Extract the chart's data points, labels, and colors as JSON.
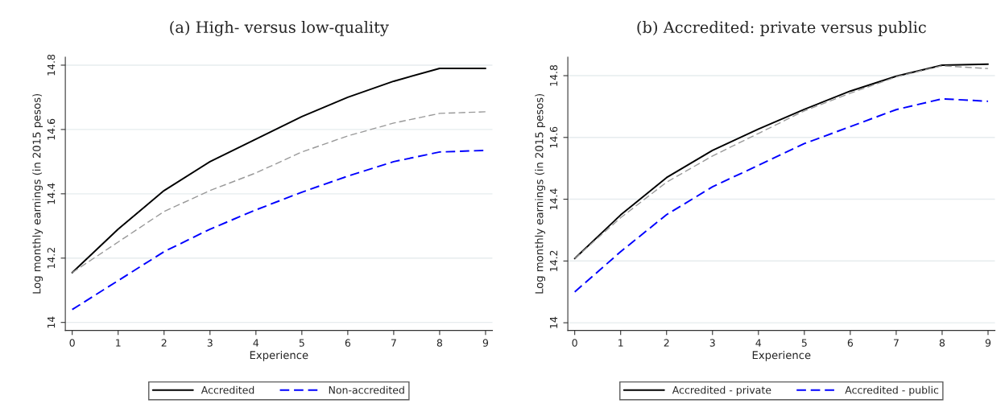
{
  "chart_data": [
    {
      "type": "line",
      "title": "(a) High- versus low-quality",
      "xlabel": "Experience",
      "ylabel": "Log monthly earnings (in 2015 pesos)",
      "x": [
        0,
        1,
        2,
        3,
        4,
        5,
        6,
        7,
        8,
        9
      ],
      "series": [
        {
          "name": "Accredited",
          "color": "#000000",
          "line_style": "solid",
          "values": [
            14.155,
            14.29,
            14.41,
            14.5,
            14.57,
            14.64,
            14.7,
            14.75,
            14.79,
            14.79
          ]
        },
        {
          "name": "Non-accredited",
          "color": "#0000ff",
          "line_style": "dashed",
          "values": [
            14.04,
            14.13,
            14.22,
            14.29,
            14.35,
            14.405,
            14.455,
            14.5,
            14.53,
            14.535
          ]
        },
        {
          "color": "#999999",
          "line_style": "dashed",
          "values": [
            14.155,
            14.25,
            14.345,
            14.41,
            14.465,
            14.53,
            14.58,
            14.62,
            14.65,
            14.655
          ]
        }
      ],
      "xlim": [
        -0.15,
        9.15
      ],
      "xticks": [
        0,
        1,
        2,
        3,
        4,
        5,
        6,
        7,
        8,
        9
      ],
      "ylim": [
        13.975,
        14.825
      ],
      "yticks": [
        14,
        14.2,
        14.4,
        14.6,
        14.8
      ],
      "grid": "y",
      "legend": "bottom"
    },
    {
      "type": "line",
      "title": "(b) Accredited: private versus public",
      "xlabel": "Experience",
      "ylabel": "Log monthly earnings (in 2015 pesos)",
      "x": [
        0,
        1,
        2,
        3,
        4,
        5,
        6,
        7,
        8,
        9
      ],
      "series": [
        {
          "name": "Accredited - private",
          "color": "#000000",
          "line_style": "solid",
          "values": [
            14.208,
            14.349,
            14.47,
            14.558,
            14.627,
            14.691,
            14.75,
            14.798,
            14.834,
            14.837
          ]
        },
        {
          "name": "Accredited - public",
          "color": "#0000ff",
          "line_style": "dashed",
          "values": [
            14.1,
            14.23,
            14.35,
            14.44,
            14.51,
            14.58,
            14.635,
            14.69,
            14.725,
            14.717
          ]
        },
        {
          "color": "#999999",
          "line_style": "dashed",
          "values": [
            14.208,
            14.34,
            14.455,
            14.54,
            14.613,
            14.686,
            14.743,
            14.796,
            14.832,
            14.823
          ]
        }
      ],
      "xlim": [
        -0.15,
        9.15
      ],
      "xticks": [
        0,
        1,
        2,
        3,
        4,
        5,
        6,
        7,
        8,
        9
      ],
      "ylim": [
        13.975,
        14.86
      ],
      "yticks": [
        14,
        14.2,
        14.4,
        14.6,
        14.8
      ],
      "grid": "y",
      "legend": "bottom"
    }
  ]
}
